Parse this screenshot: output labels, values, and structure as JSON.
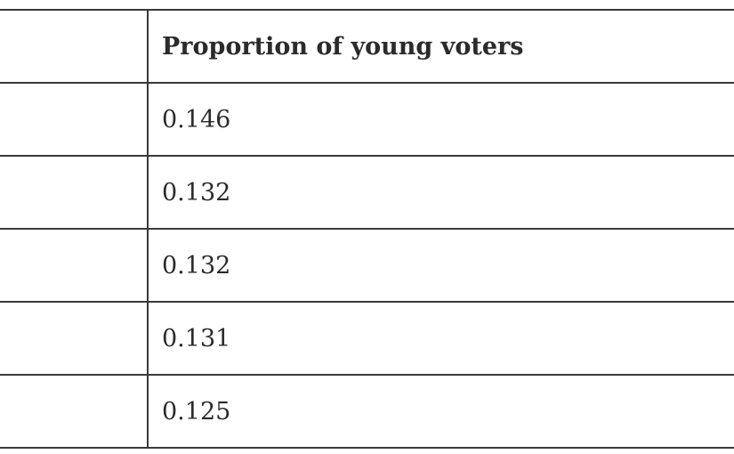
{
  "table": {
    "headers": [
      "",
      "Proportion of young voters"
    ],
    "rows": [
      [
        "",
        "0.146"
      ],
      [
        "",
        "0.132"
      ],
      [
        "",
        "0.132"
      ],
      [
        "",
        "0.131"
      ],
      [
        "",
        "0.125"
      ]
    ]
  }
}
